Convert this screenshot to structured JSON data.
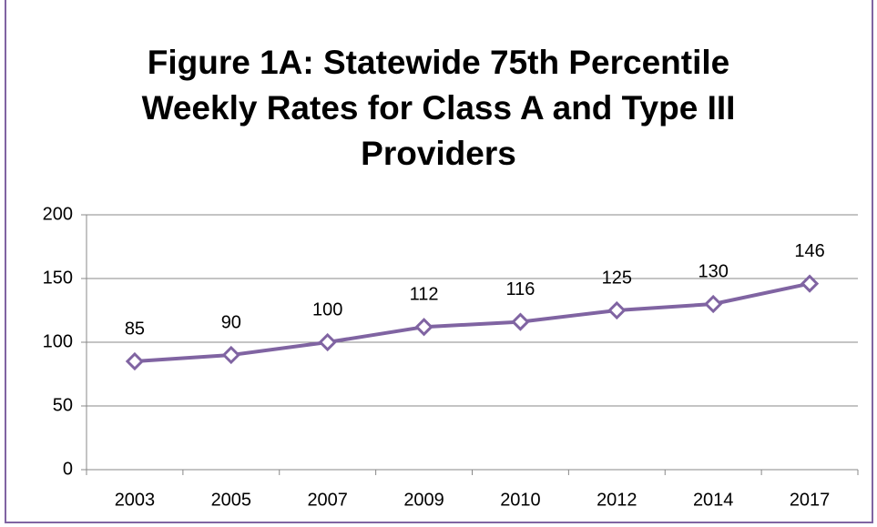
{
  "chart_data": {
    "type": "line",
    "title": "Figure 1A: Statewide 75th Percentile Weekly Rates for Class A and Type III Providers",
    "categories": [
      "2003",
      "2005",
      "2007",
      "2009",
      "2010",
      "2012",
      "2014",
      "2017"
    ],
    "values": [
      85,
      90,
      100,
      112,
      116,
      125,
      130,
      146
    ],
    "color": "#8064a2",
    "ylim": [
      0,
      200
    ],
    "yticks": [
      0,
      50,
      100,
      150,
      200
    ],
    "grid": true
  }
}
